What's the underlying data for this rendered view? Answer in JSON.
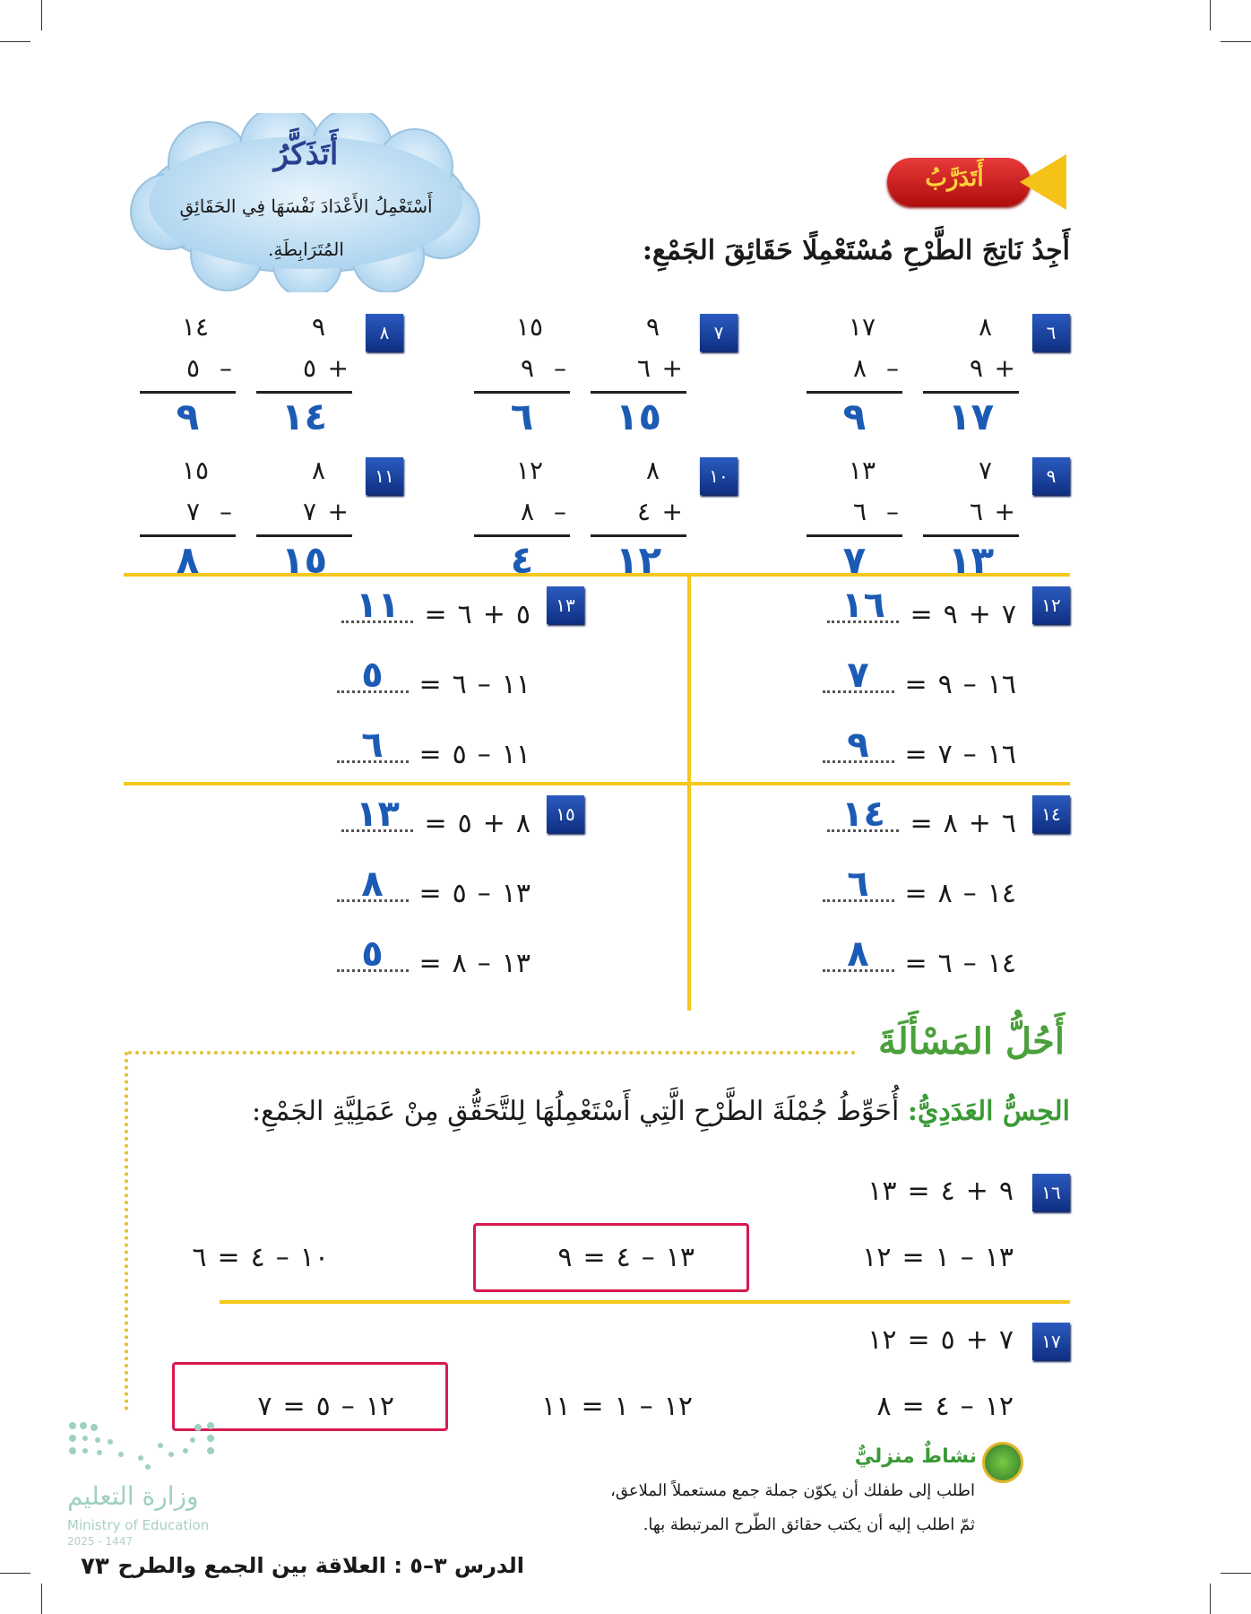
{
  "remember": {
    "title": "أَتَذَكَّرُ",
    "text": "أَسْتَعْمِلُ الأَعْدَادَ نَفْسَهَا فِي الحَقَائِقِ المُتَرَابِطَةِ."
  },
  "practice": {
    "label": "أَتَدَرَّبُ",
    "instruction": "أَجِدُ نَاتِجَ الطَّرْحِ مُسْتَعْمِلًا حَقَائِقَ الجَمْعِ:"
  },
  "vertical_problems": [
    {
      "n": "٦",
      "add": {
        "a": "٨",
        "op": "+",
        "b": "٩",
        "ans": "١٧"
      },
      "sub": {
        "a": "١٧",
        "op": "–",
        "b": "٨",
        "ans": "٩"
      }
    },
    {
      "n": "٧",
      "add": {
        "a": "٩",
        "op": "+",
        "b": "٦",
        "ans": "١٥"
      },
      "sub": {
        "a": "١٥",
        "op": "–",
        "b": "٩",
        "ans": "٦"
      }
    },
    {
      "n": "٨",
      "add": {
        "a": "٩",
        "op": "+",
        "b": "٥",
        "ans": "١٤"
      },
      "sub": {
        "a": "١٤",
        "op": "–",
        "b": "٥",
        "ans": "٩"
      }
    },
    {
      "n": "٩",
      "add": {
        "a": "٧",
        "op": "+",
        "b": "٦",
        "ans": "١٣"
      },
      "sub": {
        "a": "١٣",
        "op": "–",
        "b": "٦",
        "ans": "٧"
      }
    },
    {
      "n": "١٠",
      "add": {
        "a": "٨",
        "op": "+",
        "b": "٤",
        "ans": "١٢"
      },
      "sub": {
        "a": "١٢",
        "op": "–",
        "b": "٨",
        "ans": "٤"
      }
    },
    {
      "n": "١١",
      "add": {
        "a": "٨",
        "op": "+",
        "b": "٧",
        "ans": "١٥"
      },
      "sub": {
        "a": "١٥",
        "op": "–",
        "b": "٧",
        "ans": "٨"
      }
    }
  ],
  "fact_families": [
    {
      "n": "١٢",
      "rows": [
        {
          "a": "٧",
          "op": "+",
          "b": "٩",
          "eq": "=",
          "ans": "١٦"
        },
        {
          "a": "١٦",
          "op": "–",
          "b": "٩",
          "eq": "=",
          "ans": "٧"
        },
        {
          "a": "١٦",
          "op": "–",
          "b": "٧",
          "eq": "=",
          "ans": "٩"
        }
      ]
    },
    {
      "n": "١٣",
      "rows": [
        {
          "a": "٥",
          "op": "+",
          "b": "٦",
          "eq": "=",
          "ans": "١١"
        },
        {
          "a": "١١",
          "op": "–",
          "b": "٦",
          "eq": "=",
          "ans": "٥"
        },
        {
          "a": "١١",
          "op": "–",
          "b": "٥",
          "eq": "=",
          "ans": "٦"
        }
      ]
    },
    {
      "n": "١٤",
      "rows": [
        {
          "a": "٦",
          "op": "+",
          "b": "٨",
          "eq": "=",
          "ans": "١٤"
        },
        {
          "a": "١٤",
          "op": "–",
          "b": "٨",
          "eq": "=",
          "ans": "٦"
        },
        {
          "a": "١٤",
          "op": "–",
          "b": "٦",
          "eq": "=",
          "ans": "٨"
        }
      ]
    },
    {
      "n": "١٥",
      "rows": [
        {
          "a": "٨",
          "op": "+",
          "b": "٥",
          "eq": "=",
          "ans": "١٣"
        },
        {
          "a": "١٣",
          "op": "–",
          "b": "٥",
          "eq": "=",
          "ans": "٨"
        },
        {
          "a": "١٣",
          "op": "–",
          "b": "٨",
          "eq": "=",
          "ans": "٥"
        }
      ]
    }
  ],
  "problem_solving": {
    "title": "أَحُلُّ المَسْأَلَةَ",
    "label": "الحِسُّ العَدَدِيُّ:",
    "text": "أُحَوِّطُ جُمْلَةَ الطَّرْحِ الَّتِي أَسْتَعْمِلُهَا لِلتَّحَقُّقِ مِنْ عَمَلِيَّةِ الجَمْعِ:",
    "items": [
      {
        "n": "١٦",
        "given": [
          "٩",
          "+",
          "٤",
          "=",
          "١٣"
        ],
        "options": [
          [
            "١٣",
            "–",
            "١",
            "=",
            "١٢"
          ],
          [
            "١٣",
            "–",
            "٤",
            "=",
            "٩"
          ],
          [
            "١٠",
            "–",
            "٤",
            "=",
            "٦"
          ]
        ],
        "circled": 1
      },
      {
        "n": "١٧",
        "given": [
          "٧",
          "+",
          "٥",
          "=",
          "١٢"
        ],
        "options": [
          [
            "١٢",
            "–",
            "٤",
            "=",
            "٨"
          ],
          [
            "١٢",
            "–",
            "١",
            "=",
            "١١"
          ],
          [
            "١٢",
            "–",
            "٥",
            "=",
            "٧"
          ]
        ],
        "circled": 2
      }
    ]
  },
  "home_activity": {
    "title": "نشاطٌ منزليٌّ",
    "lines": [
      "اطلب إلى طفلك أن يكوّن جملة جمع مستعملاً الملاعق،",
      "ثمّ اطلب إليه أن يكتب حقائق الطّرح المرتبطة بها."
    ]
  },
  "footer": {
    "lesson": "الدرس ٣–٥ : العلاقة بين الجمع والطرح",
    "page": "٧٣"
  },
  "logo": {
    "ar": "وزارة التعليم",
    "en": "Ministry of Education",
    "year": "2025 - 1447"
  },
  "colors": {
    "answer": "#1c5bb5",
    "badge": "#1a3f9a",
    "divider": "#f4c81c",
    "circle": "#d8194f",
    "green": "#3a9a36"
  }
}
